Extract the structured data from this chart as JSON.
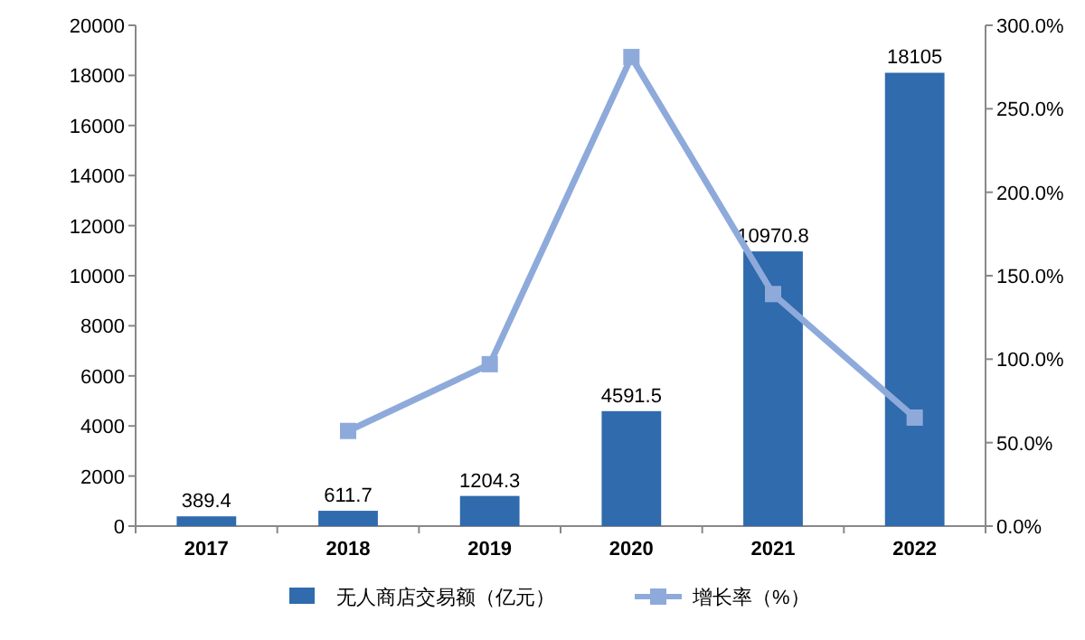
{
  "chart_data": {
    "type": "bar",
    "categories": [
      "2017",
      "2018",
      "2019",
      "2020",
      "2021",
      "2022"
    ],
    "series": [
      {
        "name": "无人商店交易额（亿元）",
        "color": "#2f6bad",
        "values": [
          389.4,
          611.7,
          1204.3,
          4591.5,
          10970.8,
          18105
        ],
        "value_labels": [
          "389.4",
          "611.7",
          "1204.3",
          "4591.5",
          "10970.8",
          "18105"
        ]
      },
      {
        "name": "增长率（%）",
        "type": "line",
        "axis": "y2",
        "color": "#8eaadb",
        "values": [
          null,
          57,
          97,
          281,
          139,
          65
        ]
      }
    ],
    "ylim": [
      0,
      20000
    ],
    "yticks": [
      0,
      2000,
      4000,
      6000,
      8000,
      10000,
      12000,
      14000,
      16000,
      18000,
      20000
    ],
    "y2lim": [
      0,
      300
    ],
    "y2ticks": [
      {
        "value": 0,
        "label": "0.0%"
      },
      {
        "value": 50,
        "label": "50.0%"
      },
      {
        "value": 100,
        "label": "100.0%"
      },
      {
        "value": 150,
        "label": "150.0%"
      },
      {
        "value": 200,
        "label": "200.0%"
      },
      {
        "value": 250,
        "label": "250.0%"
      },
      {
        "value": 300,
        "label": "300.0%"
      }
    ],
    "marker": "square",
    "legend": "bottom",
    "grid": false
  }
}
